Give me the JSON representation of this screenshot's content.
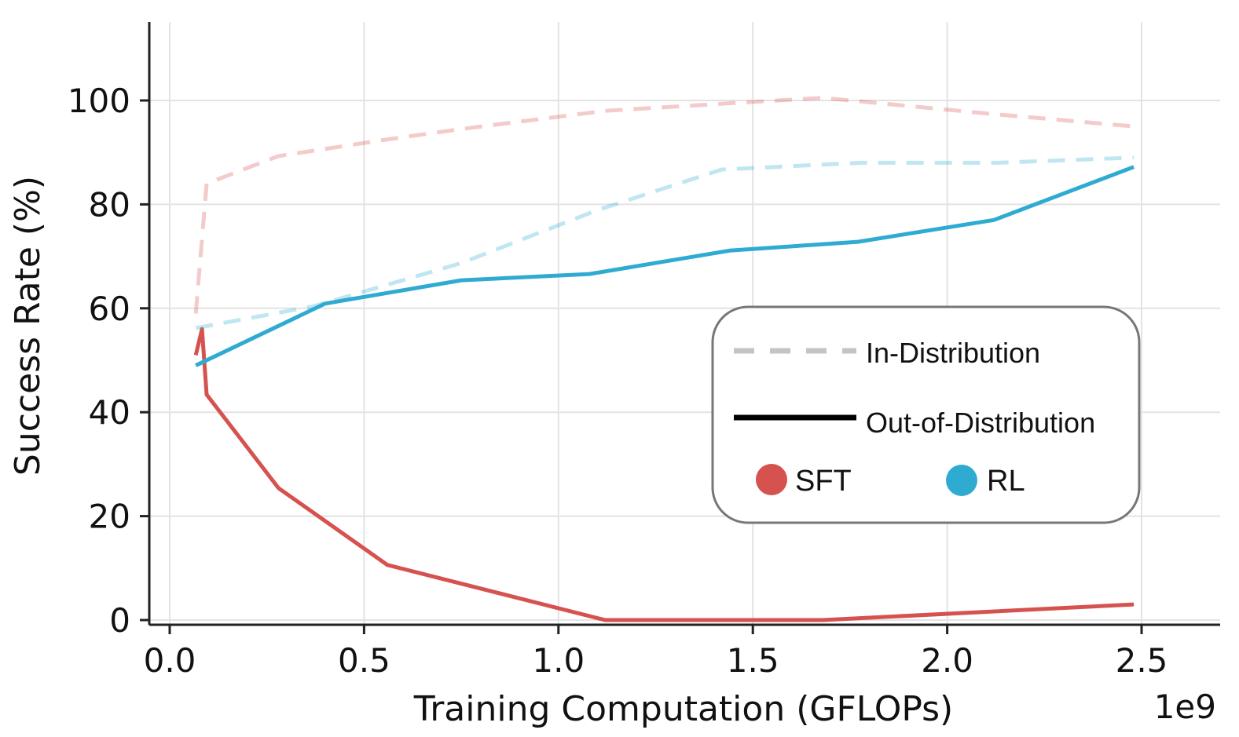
{
  "chart_data": {
    "type": "line",
    "title": "",
    "xlabel": "Training Computation (GFLOPs)",
    "ylabel": "Success Rate (%)",
    "x_offset_label": "1e9",
    "xlim": [
      -0.05,
      2.7
    ],
    "ylim": [
      -1,
      115
    ],
    "x_ticks": [
      "0.0",
      "0.5",
      "1.0",
      "1.5",
      "2.0",
      "2.5"
    ],
    "x_tick_values": [
      0,
      0.5,
      1.0,
      1.5,
      2.0,
      2.5
    ],
    "y_ticks": [
      "0",
      "20",
      "40",
      "60",
      "80",
      "100"
    ],
    "y_tick_values": [
      0,
      20,
      40,
      60,
      80,
      100
    ],
    "grid": true,
    "legend_position": "center-right",
    "legend": {
      "in_distribution": "In-Distribution",
      "out_of_distribution": "Out-of-Distribution",
      "sft": "SFT",
      "rl": "RL"
    },
    "colors": {
      "SFT": "#d6524f",
      "RL": "#2fabd2",
      "legend_dash": "#c4c4c4"
    },
    "series": [
      {
        "method": "SFT",
        "style": "dashed",
        "legend_ref": "In-Distribution",
        "x": [
          0.067,
          0.095,
          0.28,
          0.56,
          0.75,
          1.12,
          1.45,
          1.68,
          1.78,
          2.1,
          2.48
        ],
        "y": [
          59,
          84,
          89.3,
          92.5,
          94.5,
          98,
          99.5,
          100.5,
          99.8,
          97.5,
          95
        ]
      },
      {
        "method": "SFT",
        "style": "solid",
        "legend_ref": "Out-of-Distribution",
        "x": [
          0.067,
          0.083,
          0.095,
          0.28,
          0.56,
          1.12,
          1.68,
          2.48
        ],
        "y": [
          51,
          56,
          43.4,
          25.4,
          10.6,
          0,
          0,
          3
        ]
      },
      {
        "method": "RL",
        "style": "dashed",
        "legend_ref": "In-Distribution",
        "x": [
          0.067,
          0.37,
          0.75,
          1.1,
          1.42,
          1.78,
          2.13,
          2.48
        ],
        "y": [
          56.2,
          60.4,
          68.7,
          78.9,
          86.7,
          88,
          88,
          89
        ]
      },
      {
        "method": "RL",
        "style": "solid",
        "legend_ref": "Out-of-Distribution",
        "x": [
          0.067,
          0.4,
          0.75,
          1.08,
          1.44,
          1.77,
          2.12,
          2.48
        ],
        "y": [
          49,
          60.9,
          65.4,
          66.6,
          71.1,
          72.8,
          77,
          87.2
        ]
      }
    ]
  }
}
